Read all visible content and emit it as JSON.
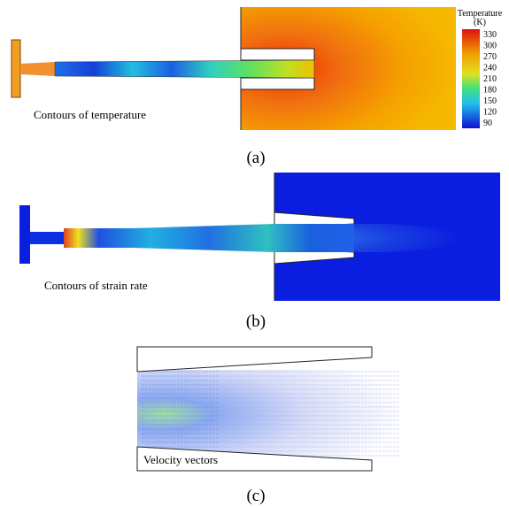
{
  "panels": [
    {
      "caption": "Contours of temperature",
      "label": "(a)",
      "colorbar": {
        "title": "Temperature",
        "unit": "(K)",
        "ticks": [
          330,
          300,
          270,
          240,
          210,
          180,
          150,
          120,
          90
        ]
      }
    },
    {
      "caption": "Contours of strain rate",
      "label": "(b)"
    },
    {
      "caption": "Velocity vectors",
      "label": "(c)"
    }
  ]
}
